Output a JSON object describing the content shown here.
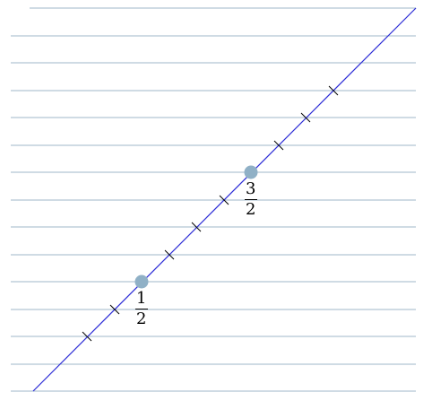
{
  "colors": {
    "ruled_line": "#9fb7c9",
    "number_line": "#2a2ad6",
    "tick": "#000000",
    "point": "#8fb0c6",
    "label": "#000000"
  },
  "points": [
    {
      "name": "one-half",
      "numerator": "1",
      "denominator": "2"
    },
    {
      "name": "three-halves",
      "numerator": "3",
      "denominator": "2"
    }
  ]
}
